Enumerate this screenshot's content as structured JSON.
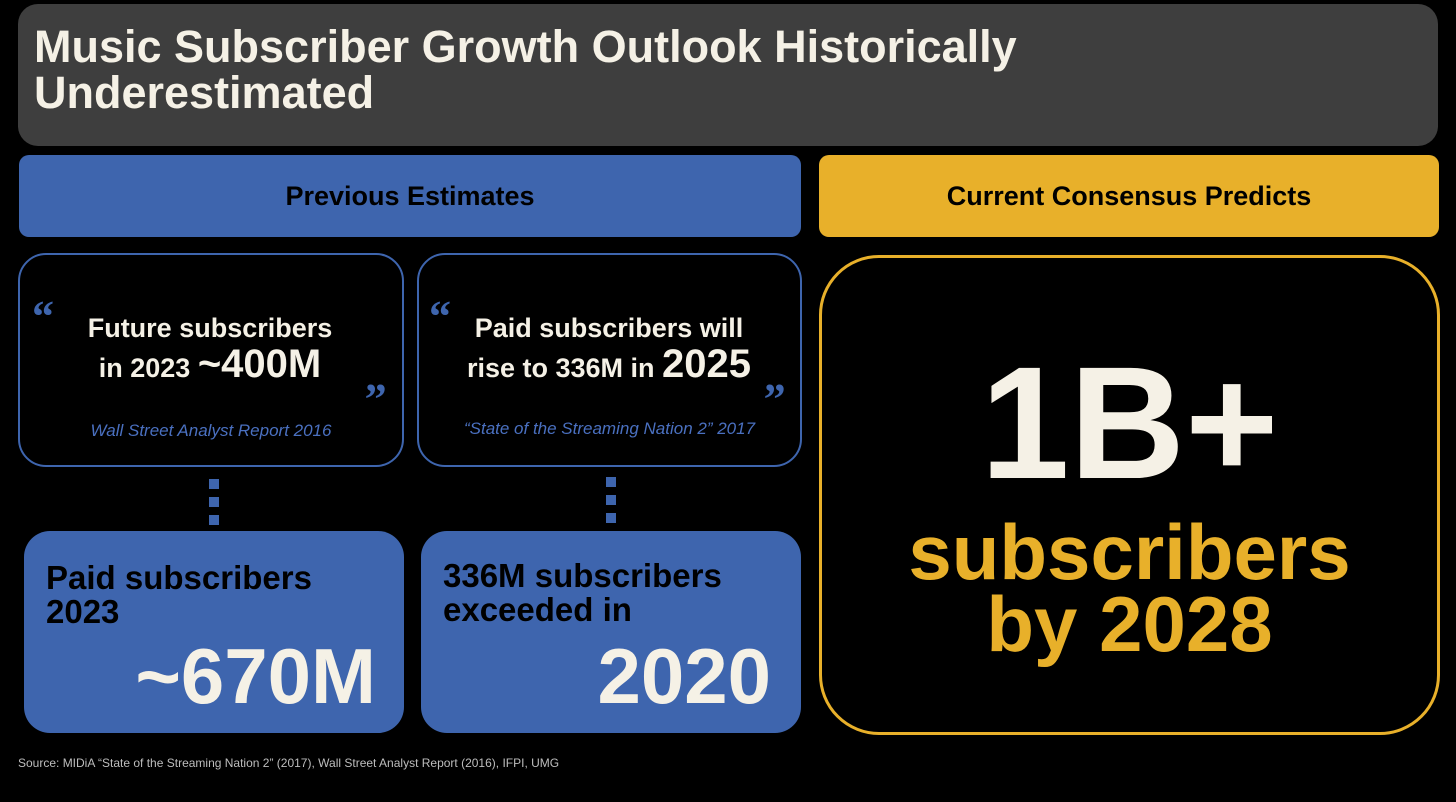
{
  "title": "Music Subscriber Growth Outlook Historically Underestimated",
  "headers": {
    "previous": "Previous Estimates",
    "current": "Current Consensus Predicts"
  },
  "quotes": [
    {
      "line1": "Future subscribers",
      "line2_prefix": "in 2023 ",
      "line2_big": "~400M",
      "source": "Wall Street Analyst Report 2016",
      "open_mark": "“",
      "close_mark": "„"
    },
    {
      "line1": "Paid subscribers will",
      "line2_prefix": "rise to 336M in ",
      "line2_big": "2025",
      "source": "“State of the Streaming Nation 2” 2017",
      "open_mark": "“",
      "close_mark": "„"
    }
  ],
  "results": [
    {
      "label_line1": "Paid subscribers",
      "label_line2": "2023",
      "big": "~670M"
    },
    {
      "label_line1": "336M subscribers",
      "label_line2": "exceeded in",
      "big": "2020"
    }
  ],
  "consensus": {
    "big": "1B+",
    "line1": "subscribers",
    "line2": "by 2028"
  },
  "source": "Source: MIDiA “State of the Streaming Nation 2” (2017), Wall Street Analyst Report (2016), IFPI, UMG",
  "colors": {
    "blue": "#3e65ae",
    "gold": "#e8b02a",
    "title_bg": "#3e3e3e",
    "cream": "#f5f1e6"
  }
}
